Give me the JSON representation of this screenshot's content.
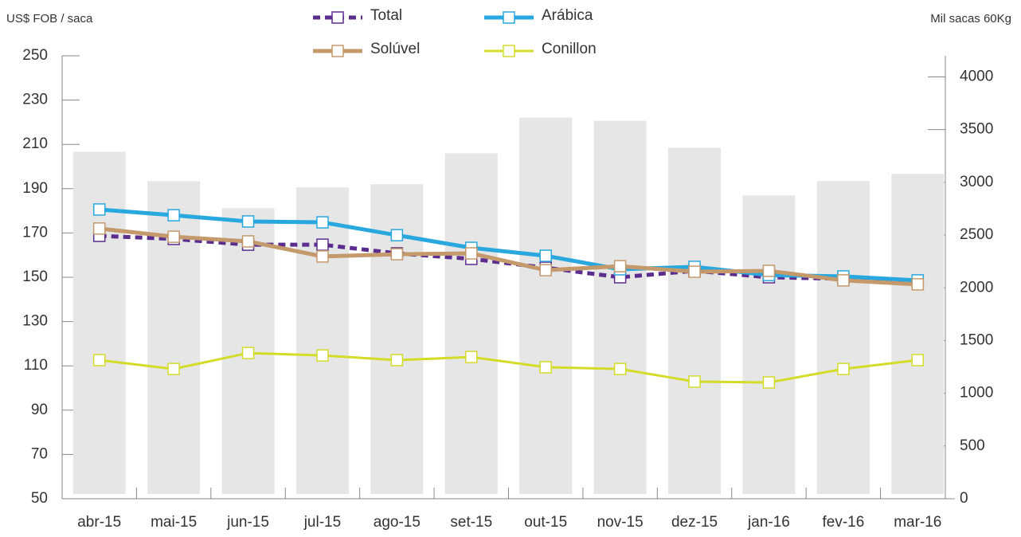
{
  "chart_data": {
    "type": "line",
    "ylabel": "US$ FOB / saca",
    "y2label": "Mil sacas 60Kg",
    "categories": [
      "abr-15",
      "mai-15",
      "jun-15",
      "jul-15",
      "ago-15",
      "set-15",
      "out-15",
      "nov-15",
      "dez-15",
      "jan-16",
      "fev-16",
      "mar-16"
    ],
    "bars": {
      "color": "#e6e6e6",
      "axis": "y2",
      "values": [
        3290,
        3010,
        2756,
        2952,
        2982,
        3276,
        3614,
        3584,
        3328,
        2876,
        3012,
        3080
      ]
    },
    "series": [
      {
        "name": "Total",
        "color": "#5b2d8e",
        "dashed": true,
        "values": [
          168.7,
          167.3,
          164.7,
          164.7,
          160.8,
          158.3,
          154.3,
          150,
          152.9,
          150,
          149.3,
          147.1
        ]
      },
      {
        "name": "Arábica",
        "color": "#29a8e0",
        "values": [
          180.6,
          178,
          175.2,
          174.8,
          169,
          163.3,
          159.7,
          153.6,
          154.7,
          151,
          150.4,
          148.6
        ]
      },
      {
        "name": "Solúvel",
        "color": "#c49a6c",
        "values": [
          172,
          168.3,
          166.2,
          159.4,
          160.4,
          160.8,
          153.2,
          155,
          152.5,
          152.9,
          148.6,
          146.8
        ]
      },
      {
        "name": "Conillon",
        "color": "#d4dc2a",
        "values": [
          112.6,
          108.6,
          115.8,
          114.7,
          112.6,
          114,
          109.4,
          108.6,
          102.9,
          102.5,
          108.6,
          112.6
        ]
      }
    ],
    "ylim": [
      50,
      250
    ],
    "yticks": [
      50,
      70,
      90,
      110,
      130,
      150,
      170,
      190,
      210,
      230,
      250
    ],
    "y2lim": [
      0,
      4200
    ],
    "y2ticks": [
      0,
      500,
      1000,
      1500,
      2000,
      2500,
      3000,
      3500,
      4000
    ]
  }
}
